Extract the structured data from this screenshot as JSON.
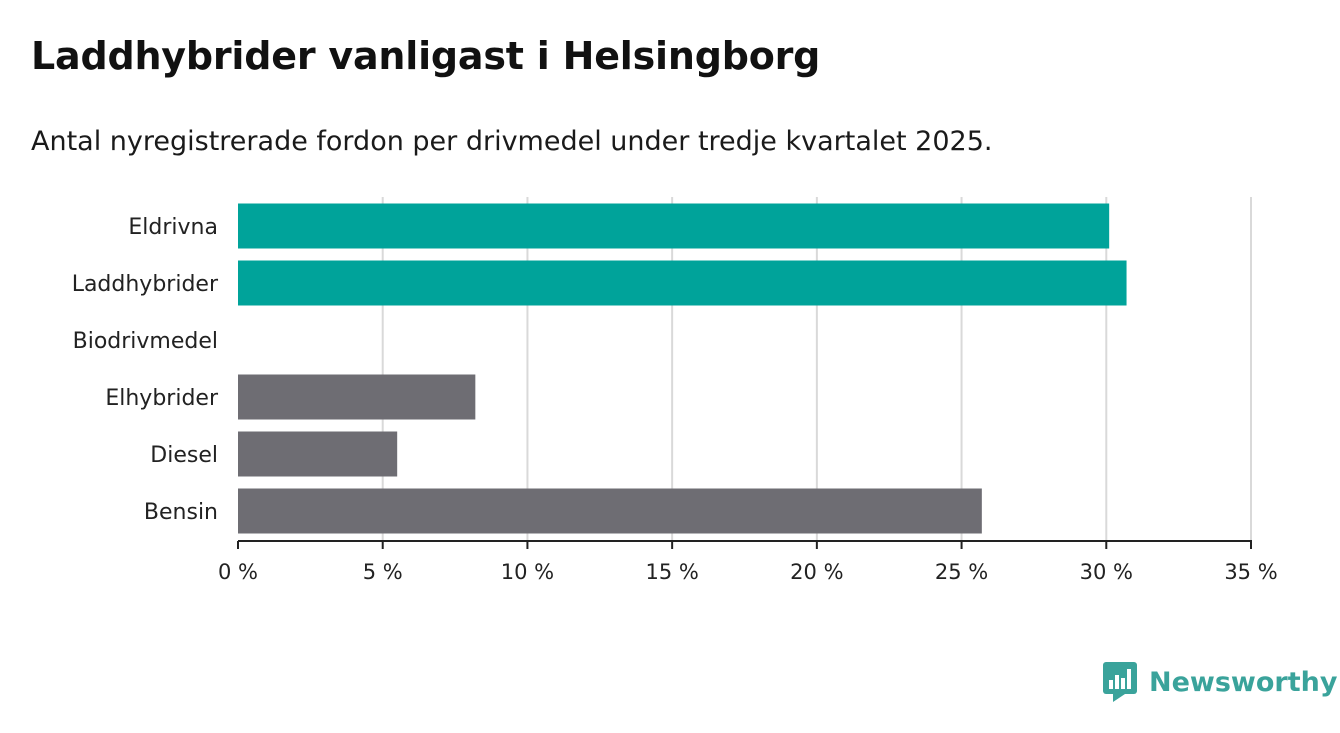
{
  "title": "Laddhybrider vanligast i Helsingborg",
  "subtitle": "Antal nyregistrerade fordon per drivmedel under tredje kvartalet 2025.",
  "brand": {
    "name": "Newsworthy",
    "color": "#3aa39b"
  },
  "colors": {
    "highlight": "#00a39a",
    "default": "#6e6d73",
    "grid": "#d9d9d9",
    "axis": "#222222"
  },
  "chart_data": {
    "type": "bar",
    "orientation": "horizontal",
    "categories": [
      "Eldrivna",
      "Laddhybrider",
      "Biodrivmedel",
      "Elhybrider",
      "Diesel",
      "Bensin"
    ],
    "values": [
      30.1,
      30.7,
      0,
      8.2,
      5.5,
      25.7
    ],
    "highlighted": [
      true,
      true,
      false,
      false,
      false,
      false
    ],
    "unit": "%",
    "xlim": [
      0,
      35
    ],
    "xticks": [
      0,
      5,
      10,
      15,
      20,
      25,
      30,
      35
    ],
    "tick_labels": [
      "0 %",
      "5 %",
      "10 %",
      "15 %",
      "20 %",
      "25 %",
      "30 %",
      "35 %"
    ],
    "grid": true,
    "xlabel": "",
    "ylabel": ""
  }
}
